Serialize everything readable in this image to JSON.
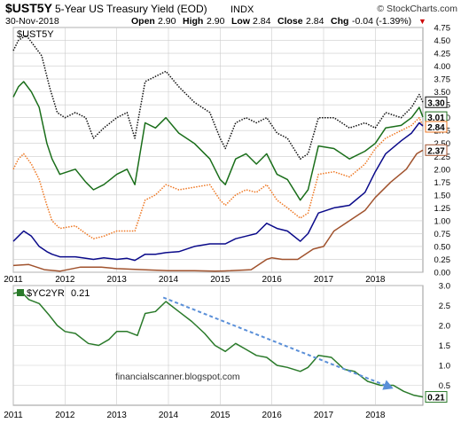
{
  "header": {
    "symbol": "$UST5Y",
    "name": "5-Year US Treasury Yield (EOD)",
    "exchange": "INDX",
    "brand": "© StockCharts.com",
    "date": "30-Nov-2018",
    "open_label": "Open",
    "open": "2.90",
    "high_label": "High",
    "high": "2.90",
    "low_label": "Low",
    "low": "2.84",
    "close_label": "Close",
    "close": "2.84",
    "chg_label": "Chg",
    "chg": "-0.04 (-1.39%)",
    "chg_marker": "▼"
  },
  "colors": {
    "black_dotted": "#111111",
    "green": "#1a6e1a",
    "orange": "#ee7722",
    "navy": "#0a0a8a",
    "brown": "#a0522d",
    "spread": "#2a7a2a",
    "arrow": "#5a8fd8",
    "grid": "#cccccc",
    "down": "#cc0000"
  },
  "watermark": "financialscanner.blogspot.com",
  "chart_data": [
    {
      "type": "line",
      "title": "$UST5Y 5-Year US Treasury Yield (EOD) INDX",
      "panel_label": "$UST5Y",
      "x_ticks": [
        "2011",
        "2012",
        "2013",
        "2014",
        "2015",
        "2016",
        "2017",
        "2018"
      ],
      "ylim": [
        0,
        4.75
      ],
      "y_ticks": [
        "0.00",
        "0.25",
        "0.50",
        "0.75",
        "1.00",
        "1.25",
        "1.50",
        "1.75",
        "2.00",
        "2.25",
        "2.50",
        "2.75",
        "3.00",
        "3.25",
        "3.50",
        "3.75",
        "4.00",
        "4.25",
        "4.50",
        "4.75"
      ],
      "grid": true,
      "series": [
        {
          "style": "dotted",
          "color": "#111111",
          "last_label": "3.30",
          "x": [
            2011.0,
            2011.1,
            2011.25,
            2011.4,
            2011.55,
            2011.7,
            2011.85,
            2012.0,
            2012.2,
            2012.4,
            2012.55,
            2012.75,
            2013.0,
            2013.2,
            2013.35,
            2013.55,
            2013.75,
            2013.95,
            2014.2,
            2014.5,
            2014.8,
            2015.0,
            2015.1,
            2015.3,
            2015.5,
            2015.7,
            2015.9,
            2016.1,
            2016.3,
            2016.55,
            2016.7,
            2016.9,
            2017.2,
            2017.5,
            2017.8,
            2018.0,
            2018.2,
            2018.5,
            2018.7,
            2018.85,
            2018.92
          ],
          "y": [
            4.3,
            4.5,
            4.6,
            4.4,
            4.2,
            3.6,
            3.1,
            3.0,
            3.1,
            3.0,
            2.6,
            2.8,
            3.0,
            3.1,
            2.6,
            3.7,
            3.8,
            3.9,
            3.6,
            3.3,
            3.1,
            2.6,
            2.4,
            2.9,
            3.0,
            2.9,
            3.0,
            2.7,
            2.6,
            2.2,
            2.3,
            3.0,
            3.0,
            2.8,
            2.9,
            2.8,
            3.1,
            3.0,
            3.2,
            3.45,
            3.3
          ]
        },
        {
          "style": "solid",
          "color": "#1a6e1a",
          "last_label": "3.01",
          "x": [
            2011.0,
            2011.1,
            2011.2,
            2011.35,
            2011.5,
            2011.65,
            2011.75,
            2011.9,
            2012.2,
            2012.4,
            2012.55,
            2012.75,
            2013.0,
            2013.2,
            2013.35,
            2013.55,
            2013.75,
            2013.95,
            2014.2,
            2014.5,
            2014.8,
            2015.0,
            2015.1,
            2015.3,
            2015.5,
            2015.7,
            2015.9,
            2016.1,
            2016.3,
            2016.55,
            2016.7,
            2016.9,
            2017.2,
            2017.5,
            2017.8,
            2018.0,
            2018.2,
            2018.5,
            2018.7,
            2018.85,
            2018.92
          ],
          "y": [
            3.4,
            3.6,
            3.7,
            3.5,
            3.2,
            2.5,
            2.2,
            1.9,
            2.0,
            1.75,
            1.6,
            1.7,
            1.9,
            2.0,
            1.7,
            2.9,
            2.8,
            3.0,
            2.7,
            2.5,
            2.2,
            1.8,
            1.7,
            2.2,
            2.3,
            2.1,
            2.3,
            1.9,
            1.8,
            1.4,
            1.6,
            2.45,
            2.4,
            2.2,
            2.35,
            2.5,
            2.8,
            2.85,
            3.0,
            3.2,
            3.01
          ]
        },
        {
          "style": "dotted",
          "color": "#ee7722",
          "last_label": "2.84",
          "x": [
            2011.0,
            2011.1,
            2011.2,
            2011.35,
            2011.5,
            2011.65,
            2011.75,
            2011.9,
            2012.2,
            2012.4,
            2012.55,
            2012.75,
            2013.0,
            2013.2,
            2013.35,
            2013.55,
            2013.75,
            2013.95,
            2014.2,
            2014.5,
            2014.8,
            2015.0,
            2015.1,
            2015.3,
            2015.5,
            2015.7,
            2015.9,
            2016.1,
            2016.3,
            2016.55,
            2016.7,
            2016.9,
            2017.2,
            2017.5,
            2017.8,
            2018.0,
            2018.2,
            2018.5,
            2018.7,
            2018.85,
            2018.92
          ],
          "y": [
            2.0,
            2.2,
            2.3,
            2.1,
            1.8,
            1.3,
            1.0,
            0.85,
            0.9,
            0.75,
            0.65,
            0.7,
            0.8,
            0.8,
            0.8,
            1.4,
            1.5,
            1.7,
            1.6,
            1.65,
            1.7,
            1.4,
            1.3,
            1.5,
            1.6,
            1.55,
            1.7,
            1.4,
            1.25,
            1.05,
            1.15,
            1.9,
            1.95,
            1.85,
            2.1,
            2.4,
            2.6,
            2.75,
            2.85,
            3.0,
            2.84
          ]
        },
        {
          "style": "solid",
          "color": "#0a0a8a",
          "last_label": "2.84",
          "x": [
            2011.0,
            2011.1,
            2011.2,
            2011.35,
            2011.5,
            2011.65,
            2011.75,
            2011.9,
            2012.2,
            2012.4,
            2012.55,
            2012.75,
            2013.0,
            2013.2,
            2013.35,
            2013.55,
            2013.75,
            2013.95,
            2014.2,
            2014.5,
            2014.8,
            2015.0,
            2015.1,
            2015.3,
            2015.5,
            2015.7,
            2015.9,
            2016.1,
            2016.3,
            2016.55,
            2016.7,
            2016.9,
            2017.2,
            2017.5,
            2017.8,
            2018.0,
            2018.2,
            2018.5,
            2018.7,
            2018.85,
            2018.92
          ],
          "y": [
            0.6,
            0.7,
            0.8,
            0.7,
            0.5,
            0.4,
            0.35,
            0.3,
            0.3,
            0.27,
            0.25,
            0.28,
            0.25,
            0.27,
            0.23,
            0.35,
            0.35,
            0.38,
            0.4,
            0.5,
            0.55,
            0.55,
            0.55,
            0.65,
            0.7,
            0.75,
            0.95,
            0.85,
            0.8,
            0.6,
            0.75,
            1.15,
            1.25,
            1.3,
            1.55,
            1.95,
            2.3,
            2.55,
            2.7,
            2.9,
            2.84
          ]
        },
        {
          "style": "solid",
          "color": "#a0522d",
          "last_label": "2.37",
          "x": [
            2011.0,
            2011.3,
            2011.6,
            2011.9,
            2012.3,
            2012.7,
            2013.0,
            2013.5,
            2014.0,
            2014.5,
            2014.9,
            2015.2,
            2015.6,
            2015.9,
            2016.0,
            2016.2,
            2016.5,
            2016.8,
            2017.0,
            2017.2,
            2017.5,
            2017.8,
            2018.0,
            2018.3,
            2018.6,
            2018.8,
            2018.92
          ],
          "y": [
            0.13,
            0.15,
            0.05,
            0.02,
            0.1,
            0.1,
            0.07,
            0.05,
            0.03,
            0.03,
            0.02,
            0.03,
            0.05,
            0.25,
            0.28,
            0.25,
            0.25,
            0.45,
            0.5,
            0.8,
            1.0,
            1.2,
            1.45,
            1.75,
            2.0,
            2.3,
            2.37
          ]
        }
      ]
    },
    {
      "type": "line",
      "title": "$YC2YR 0.21",
      "panel_label": "$YC2YR",
      "panel_value": "0.21",
      "x_ticks": [
        "2011",
        "2012",
        "2013",
        "2014",
        "2015",
        "2016",
        "2017",
        "2018"
      ],
      "ylim": [
        0,
        3.0
      ],
      "y_ticks": [
        "0.5",
        "1.0",
        "1.5",
        "2.0",
        "2.5",
        "3.0"
      ],
      "grid": true,
      "last_label": "0.21",
      "series": [
        {
          "style": "solid",
          "color": "#2a7a2a",
          "x": [
            2011.0,
            2011.15,
            2011.3,
            2011.5,
            2011.7,
            2011.85,
            2012.0,
            2012.2,
            2012.45,
            2012.65,
            2012.85,
            2013.0,
            2013.2,
            2013.4,
            2013.55,
            2013.75,
            2013.95,
            2014.2,
            2014.45,
            2014.7,
            2014.9,
            2015.1,
            2015.3,
            2015.5,
            2015.7,
            2015.9,
            2016.1,
            2016.3,
            2016.55,
            2016.7,
            2016.9,
            2017.15,
            2017.4,
            2017.6,
            2017.85,
            2018.1,
            2018.35,
            2018.55,
            2018.75,
            2018.92
          ],
          "y": [
            2.8,
            2.85,
            2.65,
            2.55,
            2.25,
            2.0,
            1.85,
            1.8,
            1.55,
            1.5,
            1.65,
            1.85,
            1.85,
            1.75,
            2.3,
            2.35,
            2.6,
            2.35,
            2.1,
            1.8,
            1.5,
            1.35,
            1.55,
            1.4,
            1.25,
            1.2,
            1.0,
            0.95,
            0.85,
            0.95,
            1.25,
            1.2,
            0.9,
            0.85,
            0.6,
            0.5,
            0.5,
            0.35,
            0.25,
            0.21
          ]
        }
      ],
      "annotations": [
        {
          "type": "arrow",
          "style": "dashed",
          "color": "#5a8fd8",
          "from": [
            2013.9,
            2.7
          ],
          "to": [
            2018.35,
            0.42
          ]
        }
      ]
    }
  ]
}
